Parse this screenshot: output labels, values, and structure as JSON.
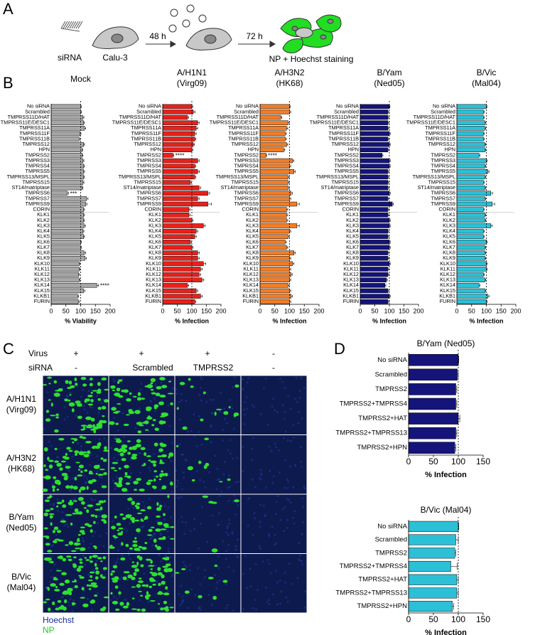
{
  "panel_labels": [
    "A",
    "B",
    "C",
    "D"
  ],
  "panel_a": {
    "sirna": "siRNA",
    "cells": "Calu-3",
    "t1": "48 h",
    "t2": "72 h",
    "readout": "NP + Hoechst staining"
  },
  "panel_c": {
    "header": [
      {
        "label": "Virus",
        "values": [
          "+",
          "+",
          "+",
          "-"
        ]
      },
      {
        "label": "siRNA",
        "values": [
          "-",
          "Scrambled",
          "TMPRSS2",
          "-"
        ]
      }
    ],
    "row_labels": [
      [
        "A/H1N1",
        "(Virg09)"
      ],
      [
        "A/H3N2",
        "(HK68)"
      ],
      [
        "B/Yam",
        "(Ned05)"
      ],
      [
        "B/Vic",
        "(Mal04)"
      ]
    ],
    "legend": [
      "Hoechst",
      "NP"
    ]
  },
  "chart_data": [
    {
      "type": "bar",
      "orientation": "horizontal",
      "title": "Mock",
      "color": "#a6a6a6",
      "categories": [
        "No siRNA",
        "Scrambled",
        "TMPRSS11D/HAT",
        "TMPRSS11E/DESC1",
        "TMPRSS11A",
        "TMPRSS11F",
        "TMPRSS11B",
        "TMPRSS12",
        "HPN",
        "TMPRSS2",
        "TMPRSS3",
        "TMPRSS4",
        "TMPRSS5",
        "TMPRSS13/MSPL",
        "TMPRSS15",
        "ST14/matriptase",
        "TMPRSS6",
        "TMPRSS7",
        "TMPRSS9",
        "CORIN",
        "KLK1",
        "KLK2",
        "KLK3",
        "KLK4",
        "KLK5",
        "KLK6",
        "KLK7",
        "KLK8",
        "KLK9",
        "KLK10",
        "KLK11",
        "KLK12",
        "KLK13",
        "KLK14",
        "KLK15",
        "KLKB1",
        "FURIN"
      ],
      "values": [
        100,
        100,
        107,
        110,
        113,
        98,
        95,
        110,
        104,
        105,
        108,
        110,
        110,
        110,
        108,
        105,
        55,
        120,
        117,
        110,
        110,
        110,
        112,
        108,
        110,
        100,
        100,
        112,
        115,
        95,
        95,
        93,
        95,
        155,
        110,
        90,
        92
      ],
      "errors": [
        2,
        3,
        4,
        3,
        4,
        3,
        4,
        3,
        3,
        3,
        3,
        3,
        3,
        3,
        3,
        3,
        4,
        5,
        4,
        3,
        3,
        3,
        4,
        3,
        3,
        3,
        3,
        5,
        4,
        3,
        3,
        3,
        3,
        6,
        4,
        3,
        3
      ],
      "annotations": [
        {
          "text": "***",
          "category": "TMPRSS6"
        },
        {
          "text": "****",
          "category": "KLK14"
        }
      ],
      "xlim": [
        0,
        200
      ],
      "xticks": [
        0,
        50,
        100,
        150,
        200
      ],
      "xlabel": "% Viability",
      "reference_line": 100
    },
    {
      "type": "bar",
      "orientation": "horizontal",
      "title": "A/H1N1",
      "subtitle": "(Virg09)",
      "color": "#e8211b",
      "categories": [
        "No siRNA",
        "Scrambled",
        "TMPRSS11D/HAT",
        "TMPRSS11E/DESC1",
        "TMPRSS11A",
        "TMPRSS11F",
        "TMPRSS11B",
        "TMPRSS12",
        "HPN",
        "TMPRSS2",
        "TMPRSS3",
        "TMPRSS4",
        "TMPRSS5",
        "TMPRSS13/MSPL",
        "TMPRSS15",
        "ST14/matriptase",
        "TMPRSS6",
        "TMPRSS7",
        "TMPRSS9",
        "CORIN",
        "KLK1",
        "KLK2",
        "KLK3",
        "KLK4",
        "KLK5",
        "KLK6",
        "KLK7",
        "KLK8",
        "KLK9",
        "KLK10",
        "KLK11",
        "KLK12",
        "KLK13",
        "KLK14",
        "KLK15",
        "KLKB1",
        "FURIN"
      ],
      "values": [
        100,
        105,
        85,
        120,
        115,
        110,
        110,
        105,
        100,
        35,
        120,
        110,
        120,
        110,
        95,
        125,
        155,
        120,
        155,
        90,
        90,
        100,
        140,
        115,
        110,
        95,
        100,
        120,
        120,
        140,
        130,
        125,
        135,
        85,
        115,
        130,
        110
      ],
      "errors": [
        3,
        6,
        4,
        5,
        5,
        5,
        4,
        4,
        4,
        3,
        5,
        4,
        6,
        4,
        4,
        5,
        6,
        5,
        12,
        4,
        4,
        4,
        6,
        5,
        5,
        4,
        4,
        6,
        5,
        8,
        6,
        5,
        6,
        4,
        5,
        6,
        4
      ],
      "annotations": [
        {
          "text": "****",
          "category": "TMPRSS2"
        }
      ],
      "xlim": [
        0,
        200
      ],
      "xticks": [
        0,
        50,
        100,
        150,
        200
      ],
      "xlabel": "% Infection",
      "reference_line": 100
    },
    {
      "type": "bar",
      "orientation": "horizontal",
      "title": "A/H3N2",
      "subtitle": "(HK68)",
      "color": "#f07d27",
      "categories": [
        "No siRNA",
        "Scrambled",
        "TMPRSS11D/HAT",
        "TMPRSS11E/DESC1",
        "TMPRSS11A",
        "TMPRSS11F",
        "TMPRSS11B",
        "TMPRSS12",
        "HPN",
        "TMPRSS2",
        "TMPRSS3",
        "TMPRSS4",
        "TMPRSS5",
        "TMPRSS13/MSPL",
        "TMPRSS15",
        "ST14/matriptase",
        "TMPRSS6",
        "TMPRSS7",
        "TMPRSS9",
        "CORIN",
        "KLK1",
        "KLK2",
        "KLK3",
        "KLK4",
        "KLK5",
        "KLK6",
        "KLK7",
        "KLK8",
        "KLK9",
        "KLK10",
        "KLK11",
        "KLK12",
        "KLK13",
        "KLK14",
        "KLK15",
        "KLKB1",
        "FURIN"
      ],
      "values": [
        100,
        100,
        70,
        95,
        90,
        85,
        85,
        90,
        80,
        20,
        110,
        100,
        115,
        95,
        95,
        95,
        105,
        100,
        125,
        90,
        90,
        90,
        125,
        100,
        95,
        85,
        90,
        115,
        100,
        110,
        100,
        105,
        100,
        95,
        100,
        105,
        100
      ],
      "errors": [
        3,
        4,
        4,
        4,
        4,
        4,
        4,
        4,
        4,
        2,
        5,
        4,
        5,
        4,
        4,
        4,
        5,
        4,
        8,
        4,
        4,
        4,
        8,
        4,
        4,
        4,
        4,
        5,
        4,
        5,
        4,
        4,
        4,
        4,
        4,
        5,
        4
      ],
      "annotations": [
        {
          "text": "****",
          "category": "TMPRSS2"
        }
      ],
      "xlim": [
        0,
        200
      ],
      "xticks": [
        0,
        50,
        100,
        150,
        200
      ],
      "xlabel": "% Infection",
      "reference_line": 100
    },
    {
      "type": "bar",
      "orientation": "horizontal",
      "title": "B/Yam",
      "subtitle": "(Ned05)",
      "color": "#14147a",
      "categories": [
        "No siRNA",
        "Scrambled",
        "TMPRSS11D/HAT",
        "TMPRSS11E/DESC1",
        "TMPRSS11A",
        "TMPRSS11F",
        "TMPRSS11B",
        "TMPRSS12",
        "HPN",
        "TMPRSS2",
        "TMPRSS3",
        "TMPRSS4",
        "TMPRSS5",
        "TMPRSS13/MSPL",
        "TMPRSS15",
        "ST14/matriptase",
        "TMPRSS6",
        "TMPRSS7",
        "TMPRSS9",
        "CORIN",
        "KLK1",
        "KLK2",
        "KLK3",
        "KLK4",
        "KLK5",
        "KLK6",
        "KLK7",
        "KLK8",
        "KLK9",
        "KLK10",
        "KLK11",
        "KLK12",
        "KLK13",
        "KLK14",
        "KLK15",
        "KLKB1",
        "FURIN"
      ],
      "values": [
        100,
        95,
        95,
        95,
        95,
        100,
        95,
        100,
        95,
        75,
        100,
        100,
        95,
        95,
        95,
        95,
        100,
        95,
        110,
        95,
        95,
        100,
        100,
        95,
        95,
        100,
        100,
        95,
        95,
        100,
        95,
        95,
        90,
        85,
        95,
        100,
        95
      ],
      "errors": [
        2,
        3,
        3,
        3,
        3,
        3,
        3,
        3,
        3,
        3,
        3,
        3,
        3,
        3,
        3,
        3,
        3,
        3,
        4,
        3,
        3,
        3,
        3,
        3,
        3,
        3,
        3,
        3,
        3,
        3,
        3,
        3,
        3,
        3,
        3,
        3,
        3
      ],
      "xlim": [
        0,
        200
      ],
      "xticks": [
        0,
        50,
        100,
        150,
        200
      ],
      "xlabel": "% Infection",
      "reference_line": 100
    },
    {
      "type": "bar",
      "orientation": "horizontal",
      "title": "B/Vic",
      "subtitle": "(Mal04)",
      "color": "#2cc0d6",
      "categories": [
        "No siRNA",
        "Scrambled",
        "TMPRSS11D/HAT",
        "TMPRSS11E/DESC1",
        "TMPRSS11A",
        "TMPRSS11F",
        "TMPRSS11B",
        "TMPRSS12",
        "HPN",
        "TMPRSS2",
        "TMPRSS3",
        "TMPRSS4",
        "TMPRSS5",
        "TMPRSS13/MSPL",
        "TMPRSS15",
        "ST14/matriptase",
        "TMPRSS6",
        "TMPRSS7",
        "TMPRSS9",
        "CORIN",
        "KLK1",
        "KLK2",
        "KLK3",
        "KLK4",
        "KLK5",
        "KLK6",
        "KLK7",
        "KLK8",
        "KLK9",
        "KLK10",
        "KLK11",
        "KLK12",
        "KLK13",
        "KLK14",
        "KLK15",
        "KLKB1",
        "FURIN"
      ],
      "values": [
        100,
        90,
        90,
        95,
        95,
        90,
        90,
        95,
        95,
        75,
        100,
        95,
        105,
        95,
        90,
        95,
        115,
        95,
        120,
        90,
        95,
        95,
        115,
        90,
        90,
        100,
        95,
        95,
        95,
        100,
        100,
        90,
        95,
        75,
        95,
        105,
        100
      ],
      "errors": [
        2,
        3,
        3,
        3,
        3,
        3,
        3,
        3,
        3,
        3,
        3,
        3,
        4,
        3,
        3,
        3,
        6,
        3,
        8,
        3,
        3,
        3,
        5,
        3,
        3,
        3,
        3,
        3,
        3,
        3,
        3,
        3,
        3,
        3,
        3,
        4,
        3
      ],
      "xlim": [
        0,
        200
      ],
      "xticks": [
        0,
        50,
        100,
        150,
        200
      ],
      "xlabel": "% Infection",
      "reference_line": 100
    },
    {
      "type": "bar",
      "orientation": "horizontal",
      "title": "B/Yam (Ned05)",
      "color": "#14147a",
      "categories": [
        "No siRNA",
        "Scrambled",
        "TMPRSS2",
        "TMPRSS2+TMPRSS4",
        "TMPRSS2+HAT",
        "TMPRSS2+TMPRSS13",
        "TMPRSS2+HPN"
      ],
      "values": [
        100,
        98,
        95,
        95,
        100,
        95,
        93
      ],
      "errors": [
        1,
        2,
        2,
        2,
        3,
        2,
        2
      ],
      "xlim": [
        0,
        150
      ],
      "xticks": [
        0,
        50,
        100,
        150
      ],
      "xlabel": "% Infection",
      "reference_line": 100
    },
    {
      "type": "bar",
      "orientation": "horizontal",
      "title": "B/Vic (Mal04)",
      "color": "#2cc0d6",
      "categories": [
        "No siRNA",
        "Scrambled",
        "TMPRSS2",
        "TMPRSS2+TMPRSS4",
        "TMPRSS2+HAT",
        "TMPRSS2+TMPRSS13",
        "TMPRSS2+HPN"
      ],
      "values": [
        100,
        95,
        93,
        85,
        97,
        97,
        88
      ],
      "errors": [
        1,
        5,
        2,
        13,
        3,
        3,
        3
      ],
      "xlim": [
        0,
        150
      ],
      "xticks": [
        0,
        50,
        100,
        150
      ],
      "xlabel": "% Infection",
      "reference_line": 100
    }
  ]
}
